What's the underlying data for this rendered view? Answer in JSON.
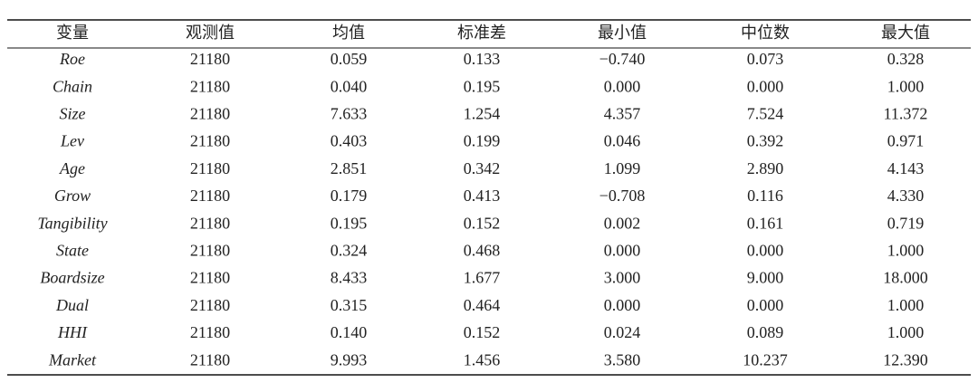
{
  "table": {
    "header": [
      "变量",
      "观测值",
      "均值",
      "标准差",
      "最小值",
      "中位数",
      "最大值"
    ],
    "rows": [
      [
        "Roe",
        "21180",
        "0.059",
        "0.133",
        "−0.740",
        "0.073",
        "0.328"
      ],
      [
        "Chain",
        "21180",
        "0.040",
        "0.195",
        "0.000",
        "0.000",
        "1.000"
      ],
      [
        "Size",
        "21180",
        "7.633",
        "1.254",
        "4.357",
        "7.524",
        "11.372"
      ],
      [
        "Lev",
        "21180",
        "0.403",
        "0.199",
        "0.046",
        "0.392",
        "0.971"
      ],
      [
        "Age",
        "21180",
        "2.851",
        "0.342",
        "1.099",
        "2.890",
        "4.143"
      ],
      [
        "Grow",
        "21180",
        "0.179",
        "0.413",
        "−0.708",
        "0.116",
        "4.330"
      ],
      [
        "Tangibility",
        "21180",
        "0.195",
        "0.152",
        "0.002",
        "0.161",
        "0.719"
      ],
      [
        "State",
        "21180",
        "0.324",
        "0.468",
        "0.000",
        "0.000",
        "1.000"
      ],
      [
        "Boardsize",
        "21180",
        "8.433",
        "1.677",
        "3.000",
        "9.000",
        "18.000"
      ],
      [
        "Dual",
        "21180",
        "0.315",
        "0.464",
        "0.000",
        "0.000",
        "1.000"
      ],
      [
        "HHI",
        "21180",
        "0.140",
        "0.152",
        "0.024",
        "0.089",
        "1.000"
      ],
      [
        "Market",
        "21180",
        "9.993",
        "1.456",
        "3.580",
        "10.237",
        "12.390"
      ]
    ]
  }
}
